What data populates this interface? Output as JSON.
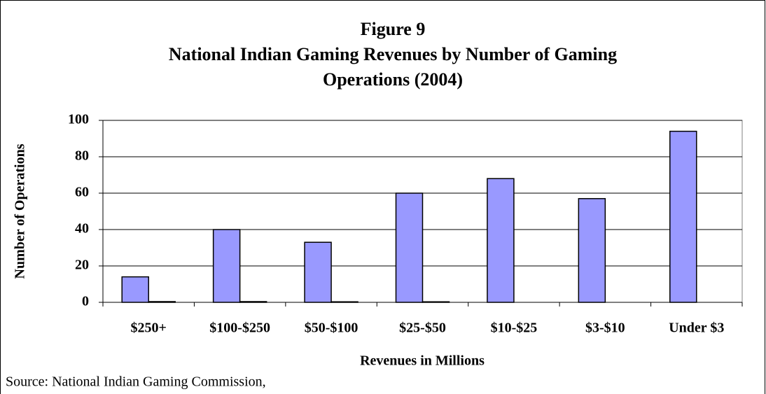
{
  "chart_data": {
    "type": "bar",
    "title_lines": [
      "Figure 9",
      "National Indian Gaming Revenues by Number of Gaming",
      "Operations (2004)"
    ],
    "y_label": "Number of Operations",
    "x_label": "Revenues in Millions",
    "source": "Source:  National Indian Gaming Commission,",
    "categories": [
      "$250+",
      "$100-$250",
      "$50-$100",
      "$25-$50",
      "$10-$25",
      "$3-$10",
      "Under $3"
    ],
    "series": [
      {
        "color": "#9999ff",
        "values": [
          14,
          40,
          33,
          60,
          68,
          57,
          94
        ]
      },
      {
        "color": "#9999ff",
        "values": [
          0.4,
          0.4,
          0.3,
          0.3,
          null,
          null,
          null
        ]
      }
    ],
    "ylim": [
      0,
      100
    ],
    "yticks": [
      0,
      20,
      40,
      60,
      80,
      100
    ],
    "grid": true
  }
}
